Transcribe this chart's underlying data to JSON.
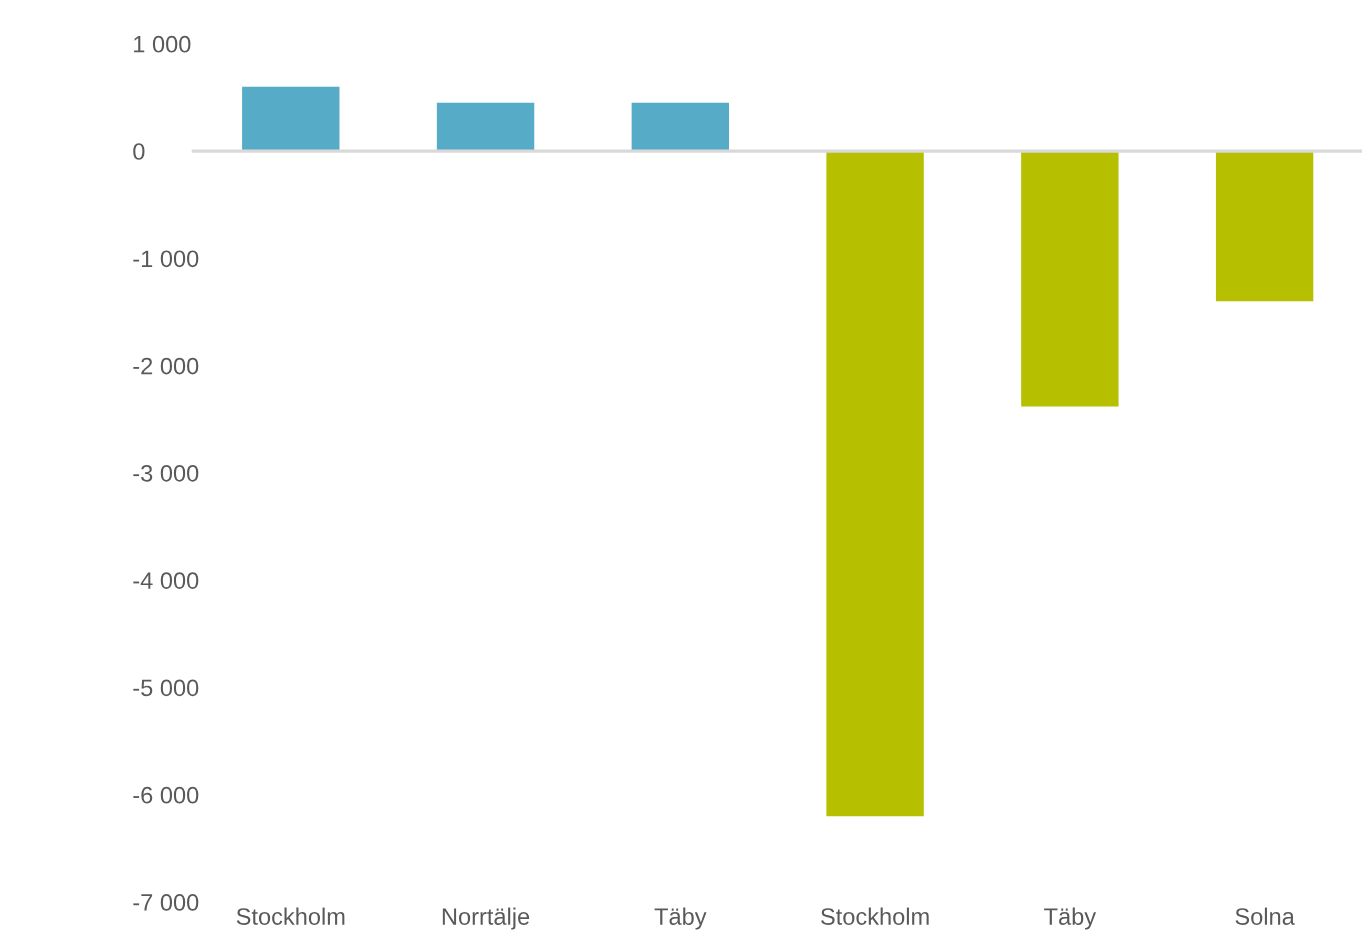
{
  "chart_data": {
    "type": "bar",
    "categories": [
      "Stockholm",
      "Norrtälje",
      "Täby",
      "Stockholm",
      "Täby",
      "Solna"
    ],
    "values": [
      600,
      450,
      450,
      -6200,
      -2380,
      -1400
    ],
    "colors": [
      "#56abc7",
      "#56abc7",
      "#56abc7",
      "#b6bf00",
      "#b6bf00",
      "#b6bf00"
    ],
    "ylim": [
      -7000,
      1000
    ],
    "yticks": [
      {
        "value": 1000,
        "label": "1 000"
      },
      0,
      {
        "value": -1000,
        "label": "-1 000"
      },
      {
        "value": -2000,
        "label": "-2 000"
      },
      {
        "value": -3000,
        "label": "-3 000"
      },
      {
        "value": -4000,
        "label": "-4 000"
      },
      {
        "value": -5000,
        "label": "-5 000"
      },
      {
        "value": -6000,
        "label": "-6 000"
      },
      {
        "value": -7000,
        "label": "-7 000"
      }
    ],
    "legend": false
  }
}
